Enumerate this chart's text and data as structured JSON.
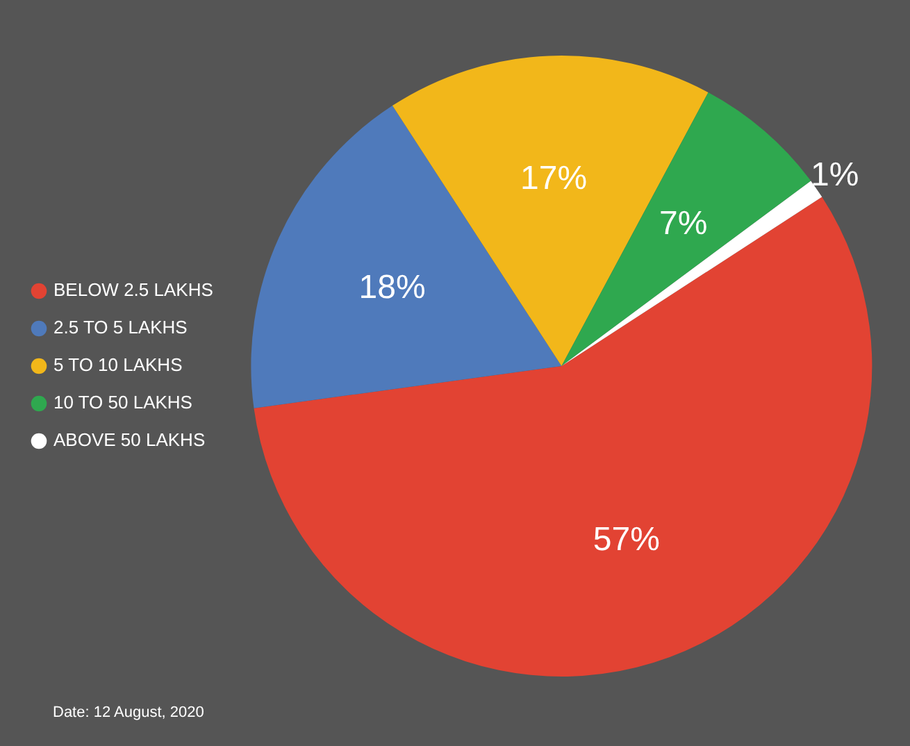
{
  "chart_data": {
    "type": "pie",
    "categories": [
      "BELOW 2.5 LAKHS",
      "2.5 TO 5 LAKHS",
      "5 TO 10 LAKHS",
      "10 TO 50 LAKHS",
      "ABOVE 50 LAKHS"
    ],
    "values": [
      57,
      18,
      17,
      7,
      1
    ],
    "value_labels": [
      "57%",
      "18%",
      "17%",
      "7%",
      "1%"
    ],
    "colors": [
      "#e24333",
      "#4f7abb",
      "#f2b71a",
      "#2fa84f",
      "#ffffff"
    ],
    "legend": "left",
    "annotations": [
      "Date: 12 August, 2020"
    ]
  }
}
